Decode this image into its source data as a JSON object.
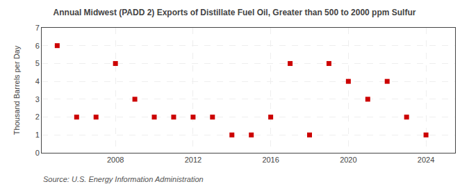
{
  "chart_data": {
    "type": "scatter",
    "title": "Annual Midwest (PADD 2) Exports of Distillate Fuel Oil, Greater than 500 to 2000 ppm Sulfur",
    "ylabel": "Thousand Barrels per Day",
    "annotations": [
      "Source: U.S. Energy Information Administration"
    ],
    "x": [
      2005,
      2006,
      2007,
      2008,
      2009,
      2010,
      2011,
      2012,
      2013,
      2014,
      2015,
      2016,
      2017,
      2018,
      2019,
      2020,
      2021,
      2022,
      2023,
      2024
    ],
    "values": [
      6,
      2,
      2,
      5,
      3,
      2,
      2,
      2,
      2,
      1,
      1,
      2,
      5,
      1,
      5,
      4,
      3,
      4,
      2,
      1
    ],
    "xlim": [
      2004.2,
      2025.5
    ],
    "xticks": [
      2008,
      2012,
      2016,
      2020,
      2024
    ],
    "ylim": [
      0,
      7
    ],
    "yticks": [
      0,
      1,
      2,
      3,
      4,
      5,
      6,
      7
    ],
    "color": "#cc0000",
    "marker": "square",
    "grid": true
  }
}
